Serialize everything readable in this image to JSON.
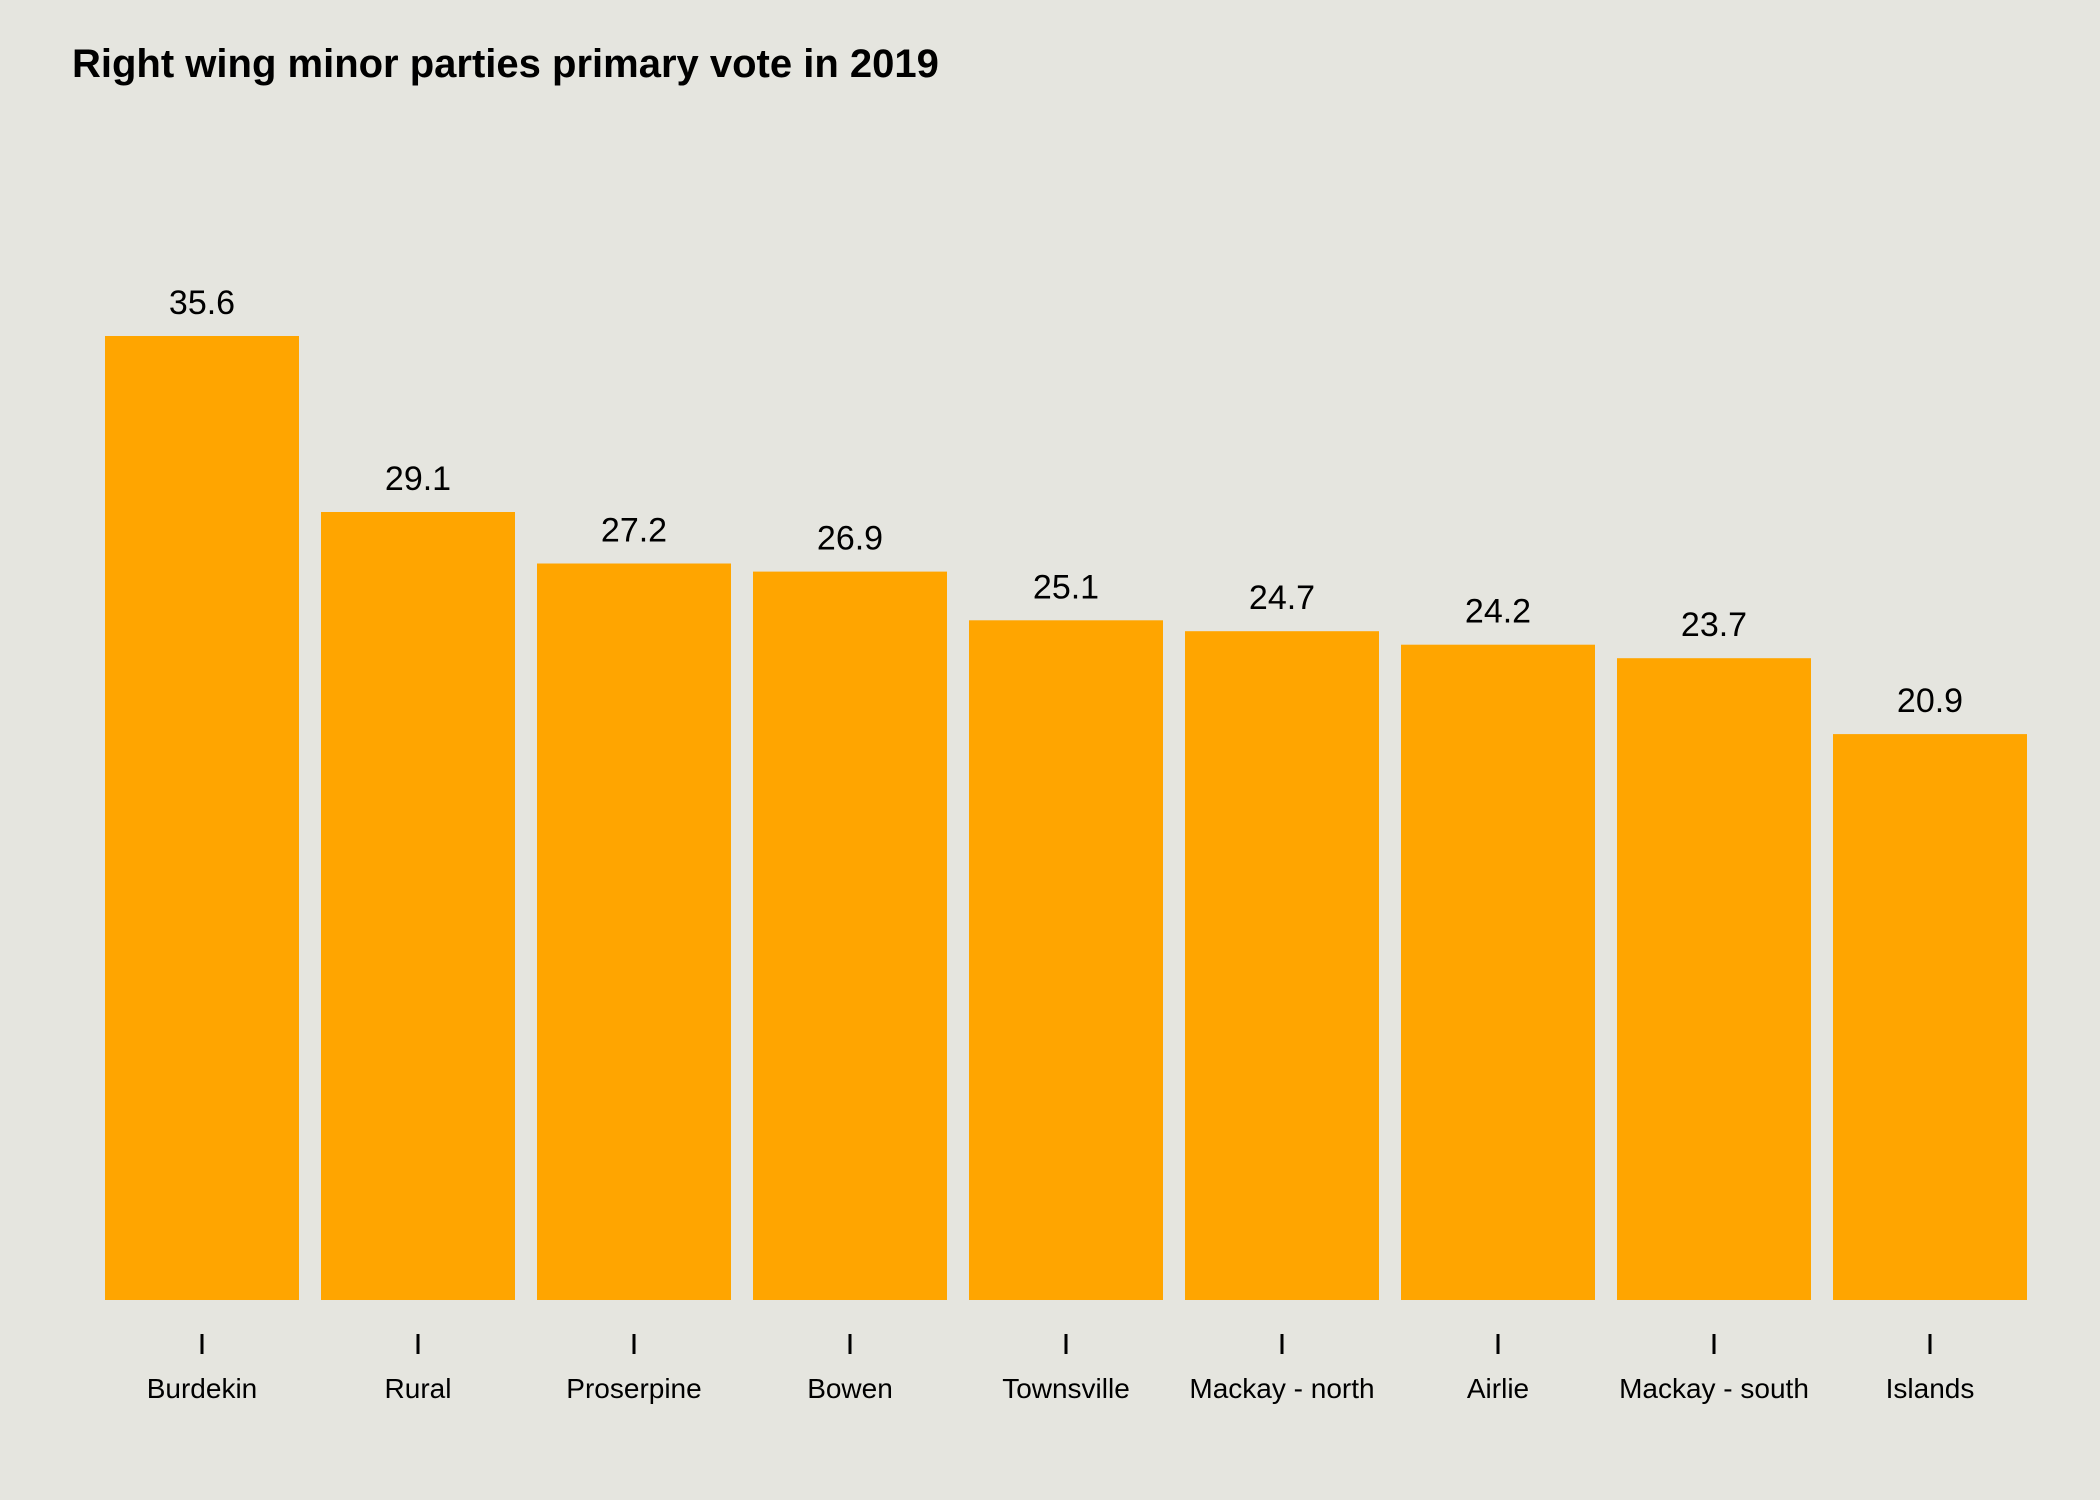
{
  "chart_data": {
    "type": "bar",
    "title": "Right wing minor parties primary vote in 2019",
    "categories": [
      "Burdekin",
      "Rural",
      "Proserpine",
      "Bowen",
      "Townsville",
      "Mackay - north",
      "Airlie",
      "Mackay - south",
      "Islands"
    ],
    "values": [
      35.6,
      29.1,
      27.2,
      26.9,
      25.1,
      24.7,
      24.2,
      23.7,
      20.9
    ],
    "value_labels": [
      "35.6",
      "29.1",
      "27.2",
      "26.9",
      "25.1",
      "24.7",
      "24.2",
      "23.7",
      "20.9"
    ],
    "xlabel": "",
    "ylabel": "",
    "ylim": [
      0,
      35.6
    ],
    "grid": false,
    "legend": "none",
    "bar_color": "#FFA500",
    "background_color": "#E5E5DF"
  }
}
